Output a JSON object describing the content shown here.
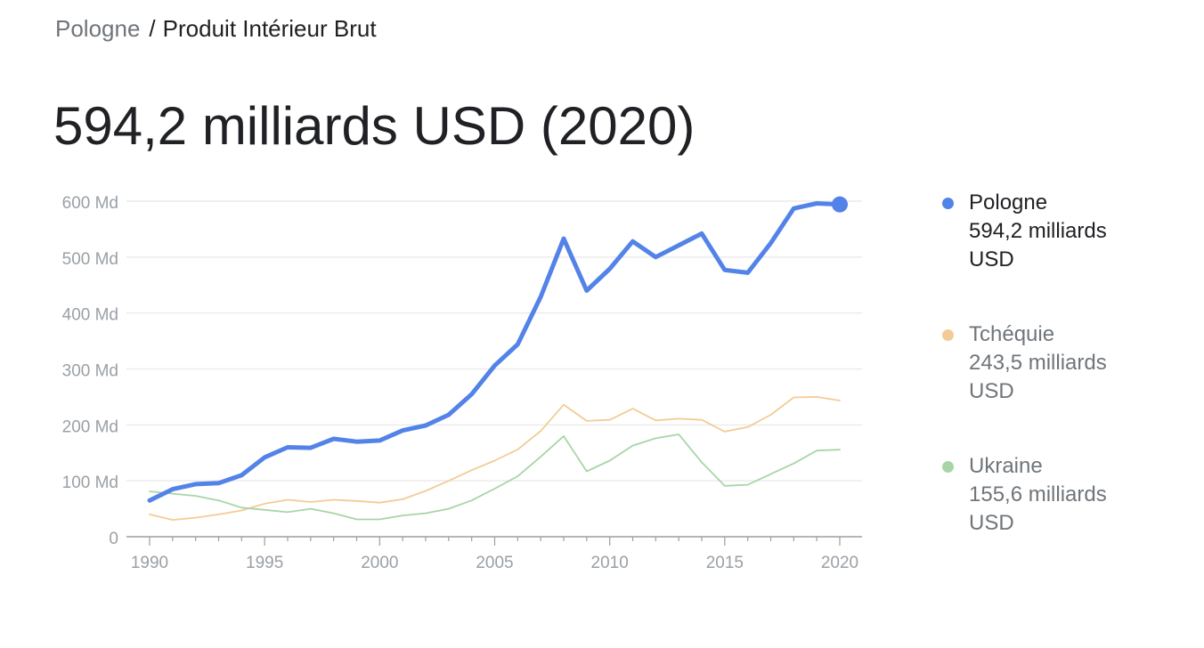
{
  "breadcrumb": {
    "parent": "Pologne",
    "separator": "/",
    "current": "Produit Intérieur Brut"
  },
  "headline": "594,2 milliards USD (2020)",
  "legend": [
    {
      "name": "Pologne",
      "value_line": "594,2 milliards",
      "unit": "USD",
      "color": "#5383e8",
      "text_color": "#202124"
    },
    {
      "name": "Tchéquie",
      "value_line": "243,5 milliards",
      "unit": "USD",
      "color": "#f2cc96",
      "text_color": "#70757a"
    },
    {
      "name": "Ukraine",
      "value_line": "155,6 milliards",
      "unit": "USD",
      "color": "#a8d5a8",
      "text_color": "#70757a"
    }
  ],
  "chart_data": {
    "type": "line",
    "x": [
      1990,
      1991,
      1992,
      1993,
      1994,
      1995,
      1996,
      1997,
      1998,
      1999,
      2000,
      2001,
      2002,
      2003,
      2004,
      2005,
      2006,
      2007,
      2008,
      2009,
      2010,
      2011,
      2012,
      2013,
      2014,
      2015,
      2016,
      2017,
      2018,
      2019,
      2020
    ],
    "x_ticks": [
      1990,
      1995,
      2000,
      2005,
      2010,
      2015,
      2020
    ],
    "y_ticks": [
      {
        "value": 0,
        "label": "0"
      },
      {
        "value": 100,
        "label": "100 Md"
      },
      {
        "value": 200,
        "label": "200 Md"
      },
      {
        "value": 300,
        "label": "300 Md"
      },
      {
        "value": 400,
        "label": "400 Md"
      },
      {
        "value": 500,
        "label": "500 Md"
      },
      {
        "value": 600,
        "label": "600 Md"
      }
    ],
    "ylim": [
      0,
      600
    ],
    "xlim": [
      1990,
      2020
    ],
    "grid": true,
    "legend_position": "right",
    "series": [
      {
        "name": "Pologne",
        "color": "#5383e8",
        "emphasis": true,
        "values": [
          65,
          85,
          94,
          96,
          110,
          142,
          160,
          159,
          175,
          170,
          172,
          190,
          199,
          218,
          255,
          306,
          344,
          429,
          533,
          440,
          479,
          528,
          500,
          521,
          542,
          477,
          472,
          525,
          587,
          596,
          594.2
        ]
      },
      {
        "name": "Tchéquie",
        "color": "#f2cc96",
        "emphasis": false,
        "values": [
          40,
          30,
          34,
          40,
          47,
          59,
          66,
          62,
          66,
          64,
          61,
          67,
          82,
          100,
          119,
          136,
          156,
          189,
          236,
          207,
          209,
          229,
          208,
          211,
          209,
          188,
          196,
          218,
          249,
          250,
          243.5
        ]
      },
      {
        "name": "Ukraine",
        "color": "#a8d5a8",
        "emphasis": false,
        "values": [
          81,
          77,
          73,
          65,
          52,
          48,
          44,
          50,
          42,
          31,
          31,
          38,
          42,
          50,
          65,
          86,
          108,
          143,
          180,
          117,
          136,
          163,
          176,
          183,
          133,
          91,
          93,
          112,
          131,
          154,
          155.6
        ]
      }
    ]
  }
}
